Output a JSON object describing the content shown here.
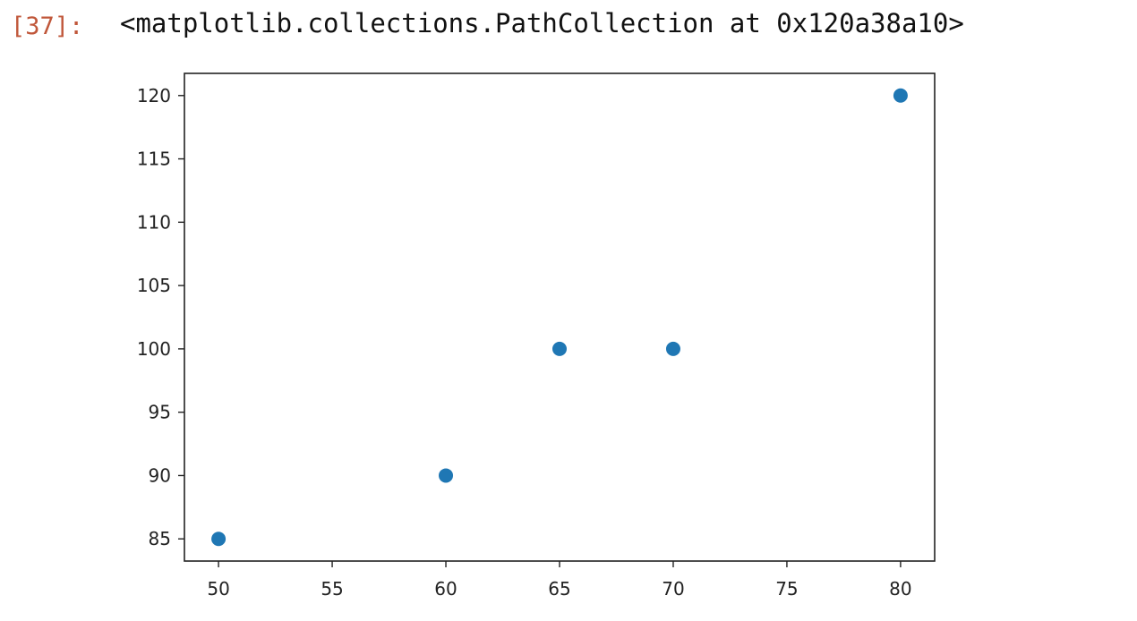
{
  "cell": {
    "prompt": "[37]:",
    "output_text": "<matplotlib.collections.PathCollection at 0x120a38a10>"
  },
  "colors": {
    "marker": "#1f77b4",
    "prompt": "#c0573a",
    "axes": "#222222"
  },
  "chart_data": {
    "type": "scatter",
    "title": "",
    "xlabel": "",
    "ylabel": "",
    "x": [
      50,
      60,
      65,
      70,
      80
    ],
    "y": [
      85,
      90,
      100,
      100,
      120
    ],
    "xlim": [
      48.5,
      81.5
    ],
    "ylim": [
      83.25,
      121.75
    ],
    "xticks": [
      50,
      55,
      60,
      65,
      70,
      75,
      80
    ],
    "yticks": [
      85,
      90,
      95,
      100,
      105,
      110,
      115,
      120
    ],
    "grid": false,
    "legend": null
  }
}
